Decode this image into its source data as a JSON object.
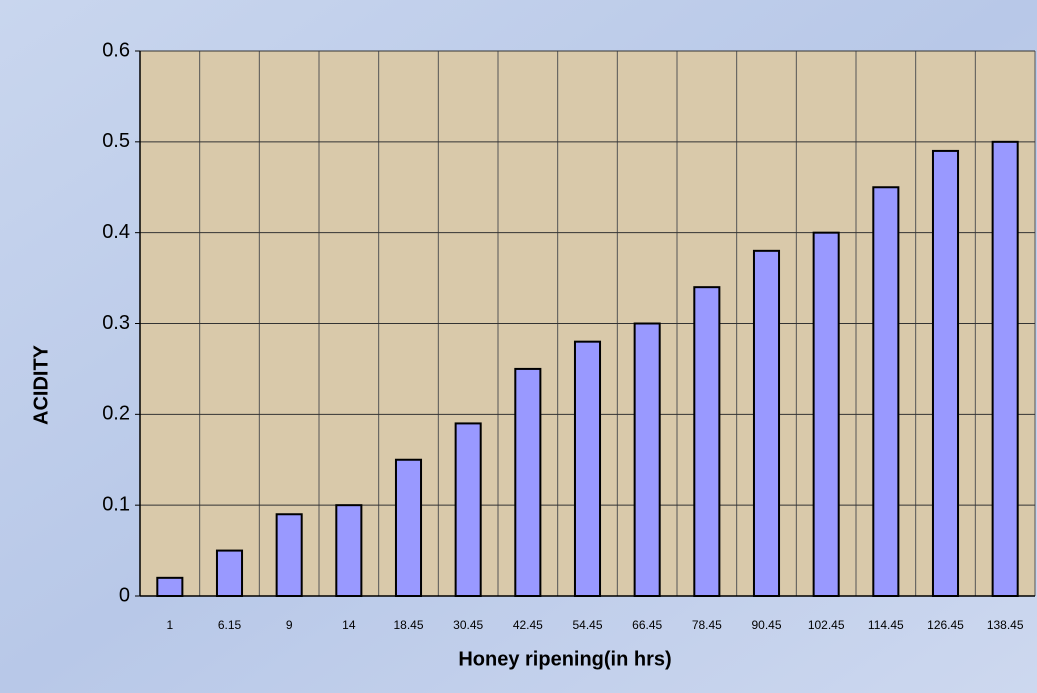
{
  "chart_data": {
    "type": "bar",
    "x_label": "Honey ripening(in hrs)",
    "y_label": "ACIDITY",
    "categories": [
      "1",
      "6.15",
      "9",
      "14",
      "18.45",
      "30.45",
      "42.45",
      "54.45",
      "66.45",
      "78.45",
      "90.45",
      "102.45",
      "114.45",
      "126.45",
      "138.45"
    ],
    "values": [
      0.02,
      0.05,
      0.09,
      0.1,
      0.15,
      0.19,
      0.25,
      0.28,
      0.3,
      0.34,
      0.38,
      0.4,
      0.45,
      0.49,
      0.5
    ],
    "color": "#9999ff",
    "ylim": [
      0,
      0.6
    ],
    "yticks": [
      0,
      0.1,
      0.2,
      0.3,
      0.4,
      0.5,
      0.6
    ],
    "grid": true
  }
}
